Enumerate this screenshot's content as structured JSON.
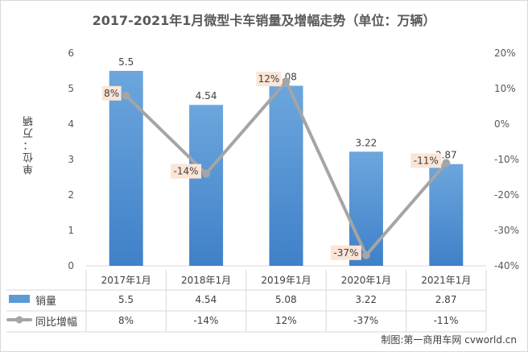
{
  "chart_data": {
    "type": "bar",
    "title": "2017-2021年1月微型卡车销量及增幅走势（单位：万辆）",
    "categories": [
      "2017年1月",
      "2018年1月",
      "2019年1月",
      "2020年1月",
      "2021年1月"
    ],
    "ylabel": "单位：万辆",
    "ylim": [
      0,
      6
    ],
    "y_ticks": [
      "0",
      "1",
      "2",
      "3",
      "4",
      "5",
      "6"
    ],
    "y2lim": [
      -40,
      20
    ],
    "y2_ticks": [
      "-40%",
      "-30%",
      "-20%",
      "-10%",
      "0%",
      "10%",
      "20%"
    ],
    "grid": false,
    "series": [
      {
        "name": "销量",
        "type": "bar",
        "axis": "left",
        "color": "#5b9bd5",
        "values": [
          5.5,
          4.54,
          5.08,
          3.22,
          2.87
        ],
        "labels": [
          "5.5",
          "4.54",
          "5.08",
          "3.22",
          "2.87"
        ]
      },
      {
        "name": "同比增幅",
        "type": "line",
        "axis": "right",
        "color": "#a5a5a5",
        "values": [
          8,
          -14,
          12,
          -37,
          -11
        ],
        "labels": [
          "8%",
          "-14%",
          "12%",
          "-37%",
          "-11%"
        ]
      }
    ],
    "label_box_color": "#fbe5d6",
    "data_table": true,
    "credit": "制图:第一商用车网 cvworld.cn"
  }
}
